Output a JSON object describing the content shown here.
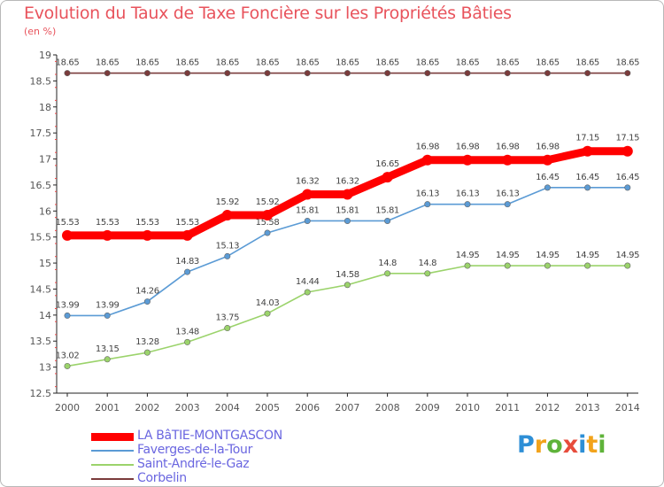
{
  "title": "Evolution du Taux de Taxe Foncière sur les Propriétés Bâties",
  "unit": "(en %)",
  "brand": {
    "letters": [
      {
        "ch": "P",
        "color": "#2e8fd6"
      },
      {
        "ch": "r",
        "color": "#f2a31b"
      },
      {
        "ch": "o",
        "color": "#5fb33a"
      },
      {
        "ch": "x",
        "color": "#e74c3c"
      },
      {
        "ch": "i",
        "color": "#2e8fd6"
      },
      {
        "ch": "t",
        "color": "#f2a31b"
      },
      {
        "ch": "i",
        "color": "#5fb33a"
      }
    ]
  },
  "chart_data": {
    "type": "line",
    "title": "Evolution du Taux de Taxe Foncière sur les Propriétés Bâties",
    "ylabel": "(en %)",
    "xlabel": "",
    "ylim": [
      12.5,
      19
    ],
    "yticks": [
      12.5,
      13,
      13.5,
      14,
      14.5,
      15,
      15.5,
      16,
      16.5,
      17,
      17.5,
      18,
      18.5,
      19
    ],
    "grid": false,
    "legend_position": "bottom-left",
    "x": [
      "2000",
      "2001",
      "2002",
      "2003",
      "2004",
      "2005",
      "2006",
      "2007",
      "2008",
      "2009",
      "2010",
      "2011",
      "2012",
      "2013",
      "2014"
    ],
    "series": [
      {
        "name": "LA BâTIE-MONTGASCON",
        "color": "#ff0000",
        "width": "thick",
        "values": [
          15.53,
          15.53,
          15.53,
          15.53,
          15.92,
          15.92,
          16.32,
          16.32,
          16.65,
          16.98,
          16.98,
          16.98,
          16.98,
          17.15,
          17.15
        ],
        "labels": [
          "15.53",
          "15.53",
          "15.53",
          "15.53",
          "15.92",
          "15.92",
          "16.32",
          "16.32",
          "16.65",
          "16.98",
          "16.98",
          "16.98",
          "16.98",
          "17.15",
          "17.15"
        ]
      },
      {
        "name": "Faverges-de-la-Tour",
        "color": "#5b9bd5",
        "width": "thin",
        "values": [
          13.99,
          13.99,
          14.26,
          14.83,
          15.13,
          15.58,
          15.81,
          15.81,
          15.81,
          16.13,
          16.13,
          16.13,
          16.45,
          16.45,
          16.45
        ],
        "labels": [
          "13.99",
          "13.99",
          "14.26",
          "14.83",
          "15.13",
          "15.58",
          "15.81",
          "15.81",
          "15.81",
          "16.13",
          "16.13",
          "16.13",
          "16.45",
          "16.45",
          "16.45"
        ]
      },
      {
        "name": "Saint-André-le-Gaz",
        "color": "#9bd36b",
        "width": "thin",
        "values": [
          13.02,
          13.15,
          13.28,
          13.48,
          13.75,
          14.03,
          14.44,
          14.58,
          14.8,
          14.8,
          14.95,
          14.95,
          14.95,
          14.95,
          14.95
        ],
        "labels": [
          "13.02",
          "13.15",
          "13.28",
          "13.48",
          "13.75",
          "14.03",
          "14.44",
          "14.58",
          "14.8",
          "14.8",
          "14.95",
          "14.95",
          "14.95",
          "14.95",
          "14.95"
        ]
      },
      {
        "name": "Corbelin",
        "color": "#7a3b3b",
        "width": "thin",
        "values": [
          18.65,
          18.65,
          18.65,
          18.65,
          18.65,
          18.65,
          18.65,
          18.65,
          18.65,
          18.65,
          18.65,
          18.65,
          18.65,
          18.65,
          18.65
        ],
        "labels": [
          "18.65",
          "18.65",
          "18.65",
          "18.65",
          "18.65",
          "18.65",
          "18.65",
          "18.65",
          "18.65",
          "18.65",
          "18.65",
          "18.65",
          "18.65",
          "18.65",
          "18.65"
        ]
      }
    ]
  }
}
